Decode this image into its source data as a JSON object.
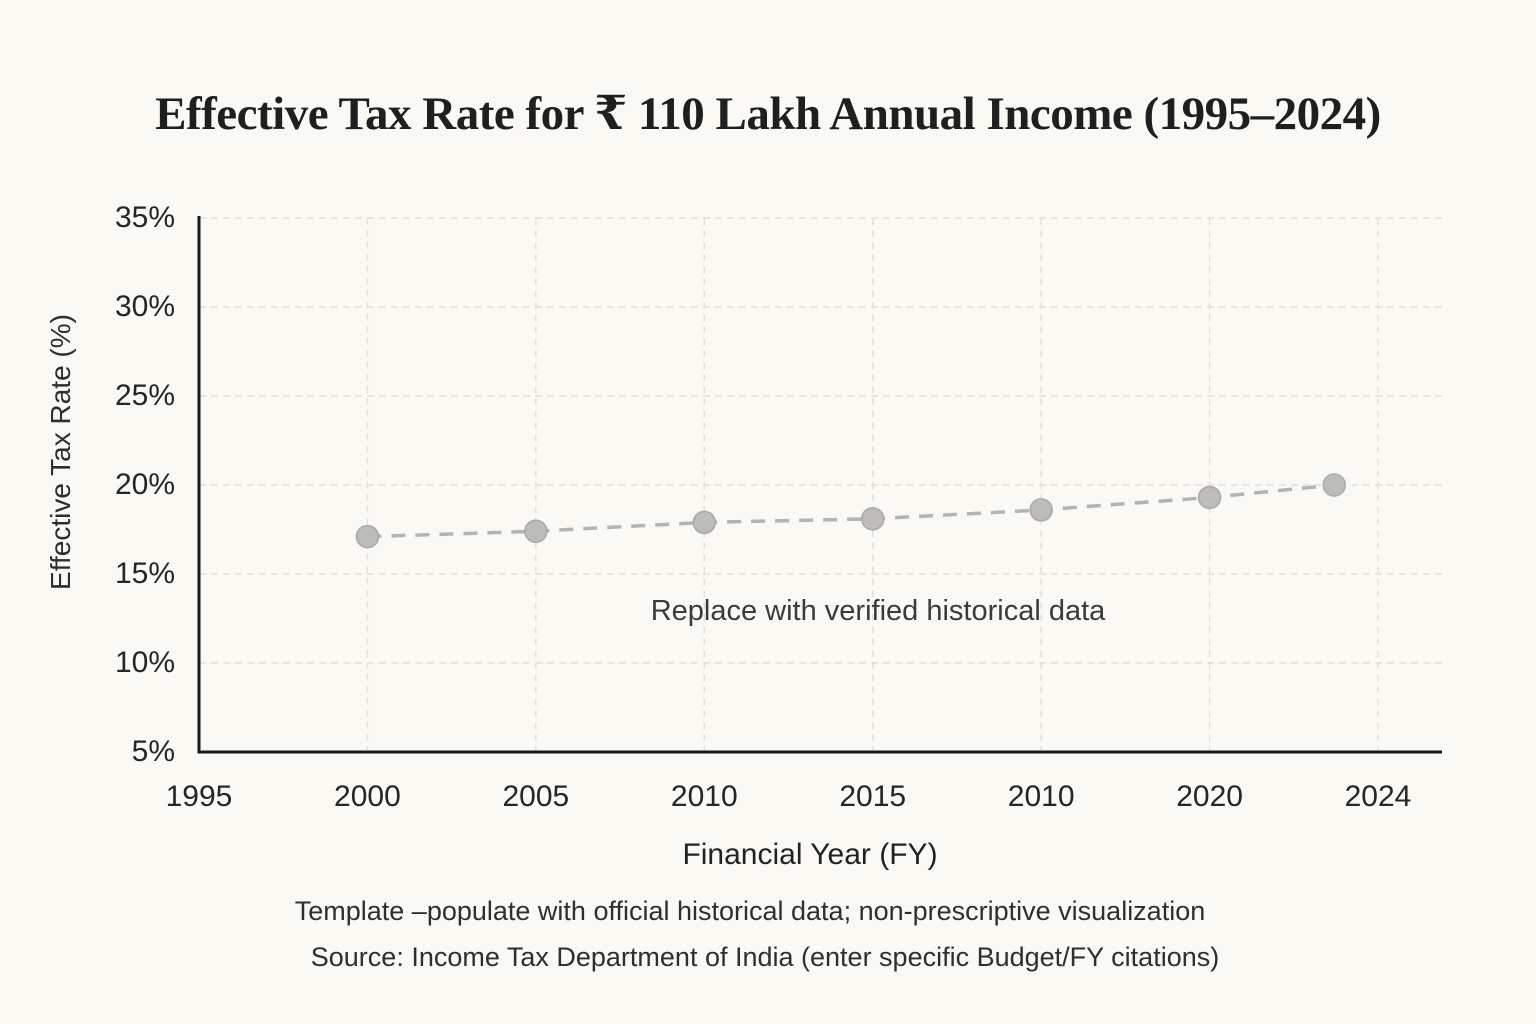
{
  "page": {
    "background_color": "#faf9f4"
  },
  "title": "Effective Tax Rate for ₹ 110 Lakh Annual Income (1995–2024)",
  "chart_data": {
    "type": "line",
    "title": "Effective Tax Rate for ₹ 110 Lakh Annual Income (1995–2024)",
    "xlabel": "Financial Year (FY)",
    "ylabel": "Effective Tax Rate (%)",
    "x_tick_labels": [
      "1995",
      "2000",
      "2005",
      "2010",
      "2015",
      "2010",
      "2020",
      "2024"
    ],
    "y_tick_labels": [
      "35%",
      "30%",
      "25%",
      "20%",
      "15%",
      "10%",
      "5%"
    ],
    "ylim": [
      5,
      35
    ],
    "grid": true,
    "legend": "none",
    "line_style": "dashed",
    "marker": "circle",
    "annotation": "Replace with verified historical data",
    "series": [
      {
        "name": "Effective Tax Rate",
        "x_tick_positions": [
          1,
          2,
          3,
          4,
          5,
          6,
          6.74
        ],
        "values": [
          17.1,
          17.4,
          17.9,
          18.1,
          18.6,
          19.3,
          20.0
        ]
      }
    ],
    "colors": {
      "line": "#b4b4b4",
      "marker_fill": "#bdbcba",
      "marker_stroke": "#aaa9a6",
      "grid": "#e2e0da",
      "axis": "#1a1a1a",
      "background": "#faf9f4"
    }
  },
  "footer": {
    "note": "Template –populate with official historical data; non-prescriptive visualization",
    "source": "Source: Income Tax Department of India (enter specific Budget/FY citations)"
  }
}
